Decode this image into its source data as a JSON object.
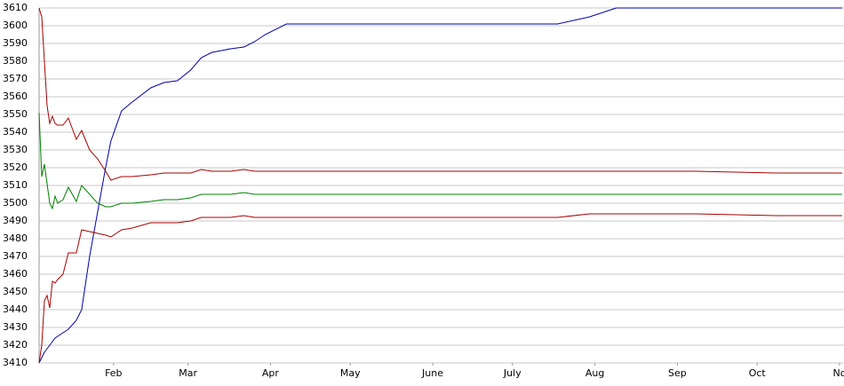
{
  "chart_data": {
    "type": "line",
    "x": [
      3,
      4,
      5,
      6,
      7,
      8,
      9,
      10,
      12,
      14,
      17,
      19,
      22,
      25,
      28,
      30,
      34,
      38,
      45,
      50,
      55,
      60,
      64,
      68,
      75,
      80,
      84,
      88,
      96,
      120,
      150,
      180,
      198,
      210,
      220,
      250,
      280,
      305
    ],
    "series": [
      {
        "color": "#0000aa",
        "values": [
          3410,
          3413,
          3416,
          3418,
          3420,
          3422,
          3424,
          3425,
          3427,
          3429,
          3434,
          3440,
          3470,
          3495,
          3520,
          3535,
          3552,
          3557,
          3565,
          3568,
          3569,
          3575,
          3582,
          3585,
          3587,
          3588,
          3591,
          3595,
          3601,
          3601,
          3601,
          3601,
          3601,
          3605,
          3610,
          3610,
          3610,
          3610
        ]
      },
      {
        "color": "#aa0000",
        "values": [
          3610,
          3605,
          3580,
          3555,
          3545,
          3549,
          3545,
          3544,
          3544,
          3548,
          3536,
          3541,
          3530,
          3525,
          3518,
          3513,
          3515,
          3515,
          3516,
          3517,
          3517,
          3517,
          3519,
          3518,
          3518,
          3519,
          3518,
          3518,
          3518,
          3518,
          3518,
          3518,
          3518,
          3518,
          3518,
          3518,
          3517,
          3517
        ]
      },
      {
        "color": "#008000",
        "values": [
          3551,
          3515,
          3522,
          3511,
          3500,
          3497,
          3504,
          3500,
          3502,
          3509,
          3501,
          3510,
          3505,
          3500,
          3498,
          3498,
          3500,
          3500,
          3501,
          3502,
          3502,
          3503,
          3505,
          3505,
          3505,
          3506,
          3505,
          3505,
          3505,
          3505,
          3505,
          3505,
          3505,
          3505,
          3505,
          3505,
          3505,
          3505
        ]
      },
      {
        "color": "#aa0000",
        "values": [
          3410,
          3420,
          3445,
          3448,
          3441,
          3456,
          3455,
          3457,
          3460,
          3472,
          3472,
          3485,
          3484,
          3483,
          3482,
          3481,
          3485,
          3486,
          3489,
          3489,
          3489,
          3490,
          3492,
          3492,
          3492,
          3493,
          3492,
          3492,
          3492,
          3492,
          3492,
          3492,
          3492,
          3494,
          3494,
          3494,
          3493,
          3493
        ]
      }
    ],
    "xlim": [
      3,
      305
    ],
    "xticks": [
      {
        "value": 31,
        "label": "Feb"
      },
      {
        "value": 59,
        "label": "Mar"
      },
      {
        "value": 90,
        "label": "Apr"
      },
      {
        "value": 120,
        "label": "May"
      },
      {
        "value": 151,
        "label": "June"
      },
      {
        "value": 181,
        "label": "July"
      },
      {
        "value": 212,
        "label": "Aug"
      },
      {
        "value": 243,
        "label": "Sep"
      },
      {
        "value": 273,
        "label": "Oct"
      },
      {
        "value": 304,
        "label": "No"
      }
    ],
    "ylim": [
      3410,
      3610
    ],
    "yticks": [
      3410,
      3420,
      3430,
      3440,
      3450,
      3460,
      3470,
      3480,
      3490,
      3500,
      3510,
      3520,
      3530,
      3540,
      3550,
      3560,
      3570,
      3580,
      3590,
      3600,
      3610
    ],
    "grid": true
  }
}
